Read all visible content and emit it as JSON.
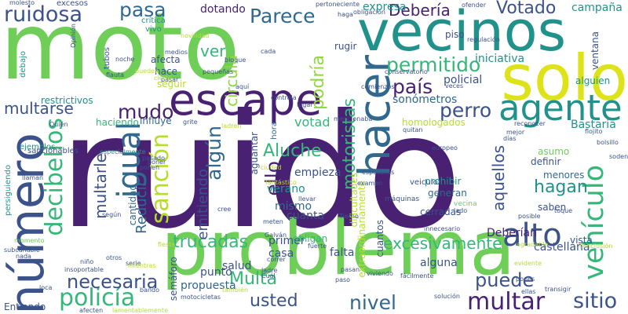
{
  "colors": {
    "background": "#ffffff",
    "dark_purple": "#482173",
    "indigo": "#3b528b",
    "blue": "#31688e",
    "teal": "#21918c",
    "sea_green": "#1f9e89",
    "green": "#35b779",
    "light_green": "#6ece58",
    "lime": "#90d743",
    "yellow_green": "#b5de2b",
    "yellow": "#dde318"
  },
  "words": [
    {
      "text": "ruido",
      "color": "#482173"
    },
    {
      "text": "moto",
      "color": "#6ece58"
    },
    {
      "text": "vecinos",
      "color": "#21918c"
    },
    {
      "text": "solo",
      "color": "#dde318"
    },
    {
      "text": "problema",
      "color": "#6ece58"
    },
    {
      "text": "hacer",
      "color": "#31688e"
    },
    {
      "text": "escape",
      "color": "#482173"
    },
    {
      "text": "número",
      "color": "#3b528b"
    },
    {
      "text": "agente",
      "color": "#21918c"
    },
    {
      "text": "igual",
      "color": "#31688e"
    },
    {
      "text": "decibelios",
      "color": "#35b779"
    },
    {
      "text": "alto",
      "color": "#3b528b"
    },
    {
      "text": "vehículo",
      "color": "#35b779"
    },
    {
      "text": "policía",
      "color": "#35b779"
    },
    {
      "text": "sanción",
      "color": "#b5de2b"
    },
    {
      "text": "ruidosa",
      "color": "#3b528b"
    },
    {
      "text": "multar",
      "color": "#482173"
    },
    {
      "text": "excesivamente",
      "color": "#35b779"
    },
    {
      "text": "usted",
      "color": "#3b528b"
    },
    {
      "text": "nivel",
      "color": "#31688e"
    },
    {
      "text": "sitio",
      "color": "#3b528b"
    },
    {
      "text": "puede",
      "color": "#3b528b"
    },
    {
      "text": "necesaria",
      "color": "#3b528b"
    },
    {
      "text": "trucadas",
      "color": "#35b779"
    },
    {
      "text": "país",
      "color": "#482173"
    },
    {
      "text": "permitido",
      "color": "#35b779"
    },
    {
      "text": "perro",
      "color": "#3b528b"
    },
    {
      "text": "algún",
      "color": "#31688e"
    },
    {
      "text": "mudo",
      "color": "#482173"
    },
    {
      "text": "pasa",
      "color": "#31688e"
    },
    {
      "text": "Parece",
      "color": "#31688e"
    },
    {
      "text": "Votado",
      "color": "#3b528b"
    },
    {
      "text": "Debería",
      "color": "#482173"
    },
    {
      "text": "motoristas",
      "color": "#35b779"
    },
    {
      "text": "Aluche",
      "color": "#35b779"
    },
    {
      "text": "hagan",
      "color": "#21918c"
    },
    {
      "text": "aquellos",
      "color": "#3b528b"
    },
    {
      "text": "ello",
      "color": "#482173"
    },
    {
      "text": "podría",
      "color": "#90d743"
    },
    {
      "text": "ver",
      "color": "#35b779"
    },
    {
      "text": "circula",
      "color": "#90d743"
    },
    {
      "text": "Multa",
      "color": "#35b779"
    },
    {
      "text": "multarle",
      "color": "#3b528b"
    },
    {
      "text": "multarse",
      "color": "#3b528b"
    },
    {
      "text": "Reducir",
      "color": "#31688e"
    },
    {
      "text": "emitiendo",
      "color": "#3b528b"
    },
    {
      "text": "votad",
      "color": "#35b779"
    },
    {
      "text": "expresa",
      "color": "#21918c"
    },
    {
      "text": "dotando",
      "color": "#482173"
    },
    {
      "text": "campaña",
      "color": "#21918c"
    },
    {
      "text": "iniciativa",
      "color": "#21918c"
    },
    {
      "text": "policial",
      "color": "#3b528b"
    },
    {
      "text": "sonómetros",
      "color": "#31688e"
    },
    {
      "text": "Bastaria",
      "color": "#21918c"
    },
    {
      "text": "castellana",
      "color": "#3b528b"
    },
    {
      "text": "Deberían",
      "color": "#482173"
    },
    {
      "text": "alguna",
      "color": "#3b528b"
    },
    {
      "text": "falta",
      "color": "#3b528b"
    },
    {
      "text": "primer",
      "color": "#3b528b"
    },
    {
      "text": "propuesta",
      "color": "#31688e"
    },
    {
      "text": "punto",
      "color": "#3b528b"
    },
    {
      "text": "salud",
      "color": "#3b528b"
    },
    {
      "text": "casa",
      "color": "#3b528b"
    },
    {
      "text": "cuanta",
      "color": "#3b528b"
    },
    {
      "text": "mismo",
      "color": "#31688e"
    },
    {
      "text": "verano",
      "color": "#21918c"
    },
    {
      "text": "empieza",
      "color": "#3b528b"
    },
    {
      "text": "Entiendo",
      "color": "#3b528b"
    },
    {
      "text": "restrictivos",
      "color": "#21918c"
    },
    {
      "text": "haciendo",
      "color": "#35b779"
    },
    {
      "text": "influye",
      "color": "#31688e"
    },
    {
      "text": "seguir",
      "color": "#b5de2b"
    },
    {
      "text": "hace",
      "color": "#3b528b"
    },
    {
      "text": "afecta",
      "color": "#3b528b"
    },
    {
      "text": "rugir",
      "color": "#3b528b"
    },
    {
      "text": "piso",
      "color": "#3b528b"
    },
    {
      "text": "ventana",
      "color": "#3b528b"
    },
    {
      "text": "alguien",
      "color": "#21918c"
    },
    {
      "text": "cerradas",
      "color": "#3b528b"
    },
    {
      "text": "prohibir",
      "color": "#21918c"
    },
    {
      "text": "generan",
      "color": "#31688e"
    },
    {
      "text": "definir",
      "color": "#3b528b"
    },
    {
      "text": "menores",
      "color": "#31688e"
    },
    {
      "text": "saben",
      "color": "#3b528b"
    },
    {
      "text": "vista",
      "color": "#3b528b"
    },
    {
      "text": "asumo",
      "color": "#6ece58"
    },
    {
      "text": "aguantar",
      "color": "#3b528b"
    },
    {
      "text": "homologados",
      "color": "#b5de2b"
    },
    {
      "text": "cantidad",
      "color": "#31688e"
    },
    {
      "text": "semáforo",
      "color": "#3b528b"
    },
    {
      "text": "excesos",
      "color": "#3b528b"
    },
    {
      "text": "crítica",
      "color": "#21918c"
    },
    {
      "text": "vivo",
      "color": "#21918c"
    },
    {
      "text": "tubos",
      "color": "#3b528b"
    },
    {
      "text": "debajo",
      "color": "#21918c"
    },
    {
      "text": "ejemplos",
      "color": "#21918c"
    },
    {
      "text": "sancionables",
      "color": "#3b528b"
    },
    {
      "text": "persiguiendo",
      "color": "#21918c"
    },
    {
      "text": "dificultades",
      "color": "#b5de2b"
    },
    {
      "text": "extraordinariamente",
      "color": "#b5de2b"
    },
    {
      "text": "cuantos",
      "color": "#3b528b"
    },
    {
      "text": "obligan",
      "color": "#35b779"
    },
    {
      "text": "vecina",
      "color": "#6ece58"
    },
    {
      "text": "hora",
      "color": "#31688e"
    },
    {
      "text": "veiculo",
      "color": "#3b528b"
    },
    {
      "text": "máquinas",
      "color": "#3b528b"
    },
    {
      "text": "molesto",
      "color": "#3b528b"
    },
    {
      "text": "Opinión",
      "color": "#3b528b"
    },
    {
      "text": "noche",
      "color": "#3b528b"
    },
    {
      "text": "flauta",
      "color": "#3b528b"
    },
    {
      "text": "Quién",
      "color": "#3b528b"
    },
    {
      "text": "especialmente",
      "color": "#21918c"
    },
    {
      "text": "llaman",
      "color": "#3b528b"
    },
    {
      "text": "momento",
      "color": "#6ece58"
    },
    {
      "text": "subcanable",
      "color": "#3b528b"
    },
    {
      "text": "insoportable",
      "color": "#3b528b"
    },
    {
      "text": "niño",
      "color": "#3b528b"
    },
    {
      "text": "loca",
      "color": "#3b528b"
    },
    {
      "text": "afecten",
      "color": "#3b528b"
    },
    {
      "text": "motocicletas",
      "color": "#3b528b"
    },
    {
      "text": "fuerte",
      "color": "#3b528b"
    },
    {
      "text": "Cuál",
      "color": "#3b528b"
    },
    {
      "text": "lamentablemente",
      "color": "#b5de2b"
    },
    {
      "text": "solución",
      "color": "#3b528b"
    },
    {
      "text": "fácilmente",
      "color": "#3b528b"
    },
    {
      "text": "pones",
      "color": "#3b528b"
    },
    {
      "text": "ellas",
      "color": "#3b528b"
    },
    {
      "text": "transigir",
      "color": "#3b528b"
    },
    {
      "text": "innecesario",
      "color": "#3b528b"
    },
    {
      "text": "viviendo",
      "color": "#3b528b"
    },
    {
      "text": "paso",
      "color": "#3b528b"
    },
    {
      "text": "pasan",
      "color": "#3b528b"
    },
    {
      "text": "Tierno",
      "color": "#3b528b"
    },
    {
      "text": "lado",
      "color": "#3b528b"
    },
    {
      "text": "posible",
      "color": "#3b528b"
    },
    {
      "text": "toque",
      "color": "#3b528b"
    },
    {
      "text": "agradable",
      "color": "#b5de2b"
    },
    {
      "text": "conclusión",
      "color": "#b5de2b"
    },
    {
      "text": "evidente",
      "color": "#b5de2b"
    },
    {
      "text": "pertoneciente",
      "color": "#3b528b"
    },
    {
      "text": "haga",
      "color": "#3b528b"
    },
    {
      "text": "obligación",
      "color": "#3b528b"
    },
    {
      "text": "ofender",
      "color": "#3b528b"
    },
    {
      "text": "conservatorio",
      "color": "#3b528b"
    },
    {
      "text": "regulación",
      "color": "#3b528b"
    },
    {
      "text": "comienzos",
      "color": "#3b528b"
    },
    {
      "text": "veces",
      "color": "#3b528b"
    },
    {
      "text": "mencionaba",
      "color": "#3b528b"
    },
    {
      "text": "quitan",
      "color": "#3b528b"
    },
    {
      "text": "europeo",
      "color": "#3b528b"
    },
    {
      "text": "reconocer",
      "color": "#3b528b"
    },
    {
      "text": "mejor",
      "color": "#3b528b"
    },
    {
      "text": "flojito",
      "color": "#3b528b"
    },
    {
      "text": "bolsillo",
      "color": "#3b528b"
    },
    {
      "text": "grite",
      "color": "#3b528b"
    },
    {
      "text": "ladren",
      "color": "#b5de2b"
    },
    {
      "text": "controla",
      "color": "#3b528b"
    },
    {
      "text": "lugar",
      "color": "#3b528b"
    },
    {
      "text": "aquí",
      "color": "#3b528b"
    },
    {
      "text": "bloque",
      "color": "#3b528b"
    },
    {
      "text": "cada",
      "color": "#3b528b"
    },
    {
      "text": "pequeñas",
      "color": "#3b528b"
    },
    {
      "text": "pasar",
      "color": "#3b528b"
    },
    {
      "text": "medios",
      "color": "#3b528b"
    },
    {
      "text": "novilidad",
      "color": "#b5de2b"
    },
    {
      "text": "pueden",
      "color": "#b5de2b"
    },
    {
      "text": "fantástico",
      "color": "#b5de2b"
    },
    {
      "text": "meten",
      "color": "#3b528b"
    },
    {
      "text": "Galván",
      "color": "#3b528b"
    },
    {
      "text": "llevar",
      "color": "#3b528b"
    },
    {
      "text": "cree",
      "color": "#3b528b"
    },
    {
      "text": "ciudad",
      "color": "#b5de2b"
    },
    {
      "text": "examen",
      "color": "#3b528b"
    },
    {
      "text": "poner",
      "color": "#3b528b"
    },
    {
      "text": "pasado",
      "color": "#3b528b"
    },
    {
      "text": "ponen",
      "color": "#3b528b"
    },
    {
      "text": "según",
      "color": "#3b528b"
    },
    {
      "text": "otros",
      "color": "#3b528b"
    },
    {
      "text": "serie",
      "color": "#3b528b"
    },
    {
      "text": "nada",
      "color": "#3b528b"
    },
    {
      "text": "también",
      "color": "#b5de2b"
    },
    {
      "text": "bando",
      "color": "#3b528b"
    },
    {
      "text": "correr",
      "color": "#3b528b"
    },
    {
      "text": "ladre",
      "color": "#3b528b"
    },
    {
      "text": "fiesta",
      "color": "#b5de2b"
    },
    {
      "text": "días",
      "color": "#3b528b"
    },
    {
      "text": "soden",
      "color": "#3b528b"
    },
    {
      "text": "espetanos",
      "color": "#3b528b"
    },
    {
      "text": "cierto",
      "color": "#b5de2b"
    },
    {
      "text": "mientras",
      "color": "#b5de2b"
    }
  ]
}
